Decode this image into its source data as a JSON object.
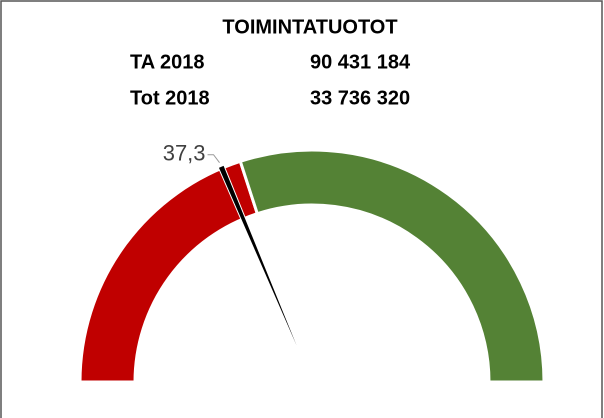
{
  "chart_data": {
    "type": "gauge",
    "title": "TOIMINTATUOTOT",
    "rows": [
      {
        "label": "TA 2018",
        "value": "90 431 184"
      },
      {
        "label": "Tot 2018",
        "value": "33 736 320"
      }
    ],
    "range": [
      0,
      100
    ],
    "bands": [
      {
        "color": "#c00000",
        "from": 0,
        "to": 40
      },
      {
        "color": "#548235",
        "from": 40,
        "to": 100
      }
    ],
    "value": 37.3,
    "value_label": "37,3",
    "needle_color": "#000000"
  }
}
